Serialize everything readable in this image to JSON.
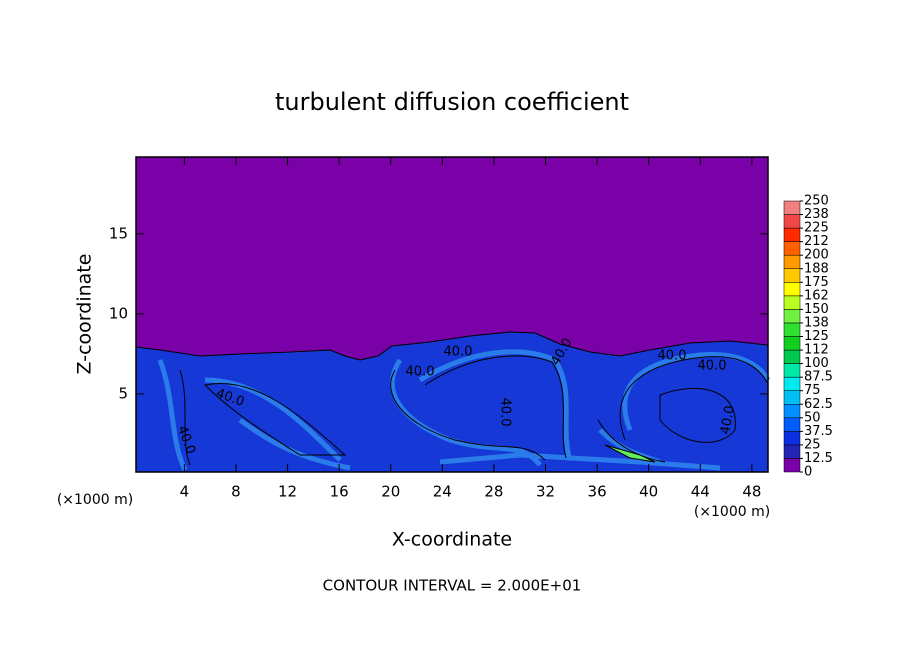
{
  "chart_data": {
    "type": "contour",
    "title": "turbulent diffusion coefficient",
    "xlabel": "X-coordinate",
    "ylabel": "Z-coordinate",
    "y_scale_label": "(×1000 m)",
    "x_scale_label": "(×1000 m)",
    "annotation": "CONTOUR INTERVAL = 2.000E+01",
    "xlim": [
      0.25,
      49.25
    ],
    "xticks": [
      4,
      8,
      12,
      16,
      20,
      24,
      28,
      32,
      36,
      40,
      44,
      48
    ],
    "ylim": [
      0.125,
      19.8
    ],
    "yticks": [
      5,
      10,
      15
    ],
    "contour_labels": [
      "40.0",
      "40.0",
      "40.0",
      "40.0",
      "40.0",
      "40.0",
      "40.0",
      "40.0",
      "40.0"
    ],
    "colorbar": {
      "levels": [
        0,
        12.5,
        25,
        37.5,
        50,
        62.5,
        75,
        87.5,
        100,
        112,
        125,
        138,
        150,
        162,
        175,
        188,
        200,
        212,
        225,
        238,
        250
      ],
      "colors": [
        "#7a00a8",
        "#2424b4",
        "#0a2ee0",
        "#005cff",
        "#0090ff",
        "#00bff2",
        "#00eaf0",
        "#00e8a8",
        "#00c850",
        "#10d020",
        "#30e030",
        "#70f040",
        "#b8ff20",
        "#ffff00",
        "#ffc800",
        "#ff9a00",
        "#ff6000",
        "#ff2a00",
        "#f04848",
        "#f08080"
      ]
    }
  }
}
